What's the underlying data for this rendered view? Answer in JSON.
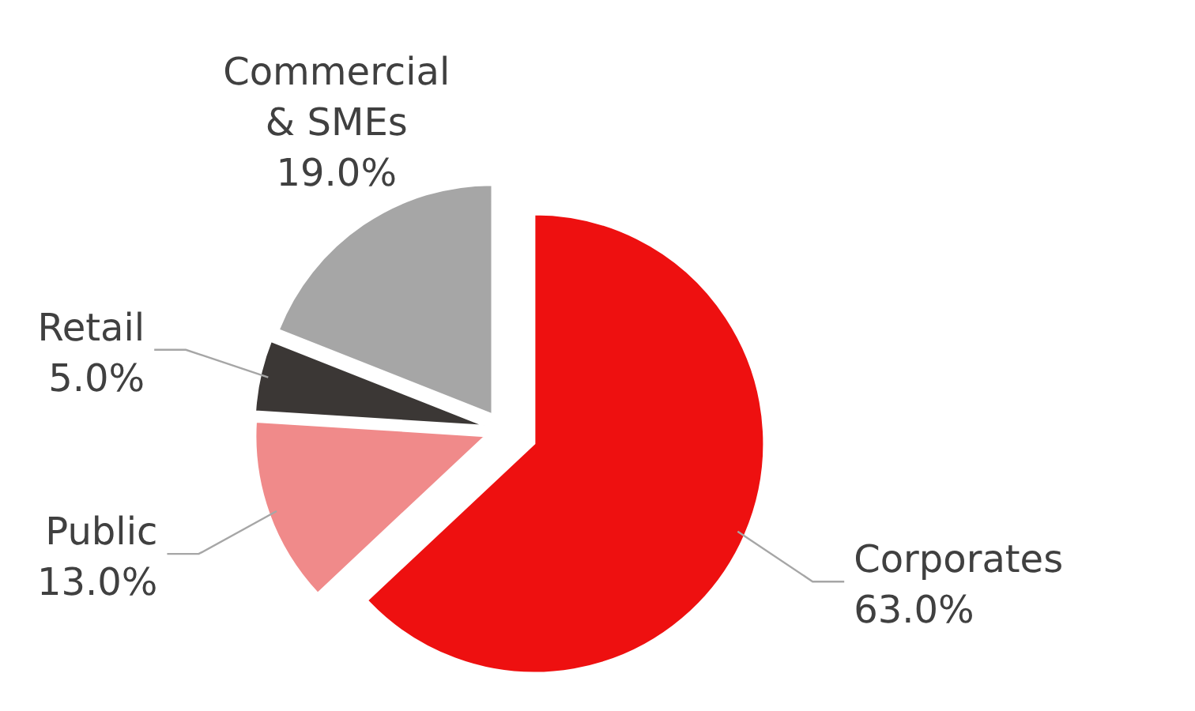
{
  "chart_data": {
    "type": "pie",
    "categories": [
      "Corporates",
      "Public",
      "Retail",
      "Commercial & SMEs"
    ],
    "values": [
      63.0,
      13.0,
      5.0,
      19.0
    ],
    "value_labels": [
      "63.0%",
      "13.0%",
      "5.0%",
      "19.0%"
    ],
    "colors": [
      "#ee1010",
      "#f08a8a",
      "#3b3735",
      "#a6a6a6"
    ]
  }
}
